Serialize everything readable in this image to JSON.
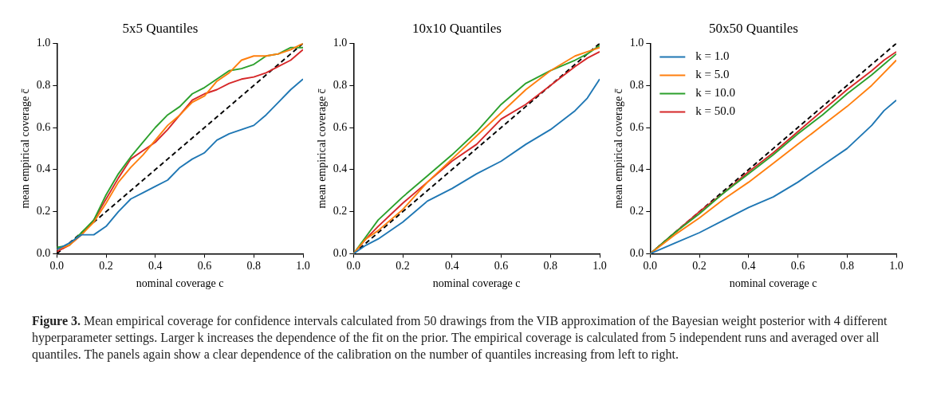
{
  "chart_data": [
    {
      "type": "line",
      "title": "5x5 Quantiles",
      "xlabel": "nominal coverage c",
      "ylabel": "mean empirical coverage c̄",
      "xlim": [
        0,
        1
      ],
      "ylim": [
        0,
        1
      ],
      "xticks": [
        {
          "value": 0,
          "label": "0.0"
        },
        {
          "value": 0.2,
          "label": "0.2"
        },
        {
          "value": 0.4,
          "label": "0.4"
        },
        {
          "value": 0.6,
          "label": "0.6"
        },
        {
          "value": 0.8,
          "label": "0.8"
        },
        {
          "value": 1,
          "label": "1.0"
        }
      ],
      "yticks": [
        {
          "value": 0,
          "label": "0.0"
        },
        {
          "value": 0.2,
          "label": "0.2"
        },
        {
          "value": 0.4,
          "label": "0.4"
        },
        {
          "value": 0.6,
          "label": "0.6"
        },
        {
          "value": 0.8,
          "label": "0.8"
        },
        {
          "value": 1,
          "label": "1.0"
        }
      ],
      "x": [
        0,
        0.05,
        0.1,
        0.15,
        0.2,
        0.25,
        0.3,
        0.35,
        0.4,
        0.45,
        0.5,
        0.55,
        0.6,
        0.65,
        0.7,
        0.75,
        0.8,
        0.85,
        0.9,
        0.95,
        1
      ],
      "series": [
        {
          "color": "#1f77b4",
          "values": [
            0.02,
            0.05,
            0.09,
            0.09,
            0.13,
            0.2,
            0.26,
            0.29,
            0.32,
            0.35,
            0.41,
            0.45,
            0.48,
            0.54,
            0.57,
            0.59,
            0.61,
            0.66,
            0.72,
            0.78,
            0.83
          ]
        },
        {
          "color": "#ff7f0e",
          "values": [
            0.02,
            0.04,
            0.09,
            0.15,
            0.24,
            0.34,
            0.41,
            0.47,
            0.54,
            0.61,
            0.66,
            0.72,
            0.75,
            0.82,
            0.86,
            0.92,
            0.94,
            0.94,
            0.95,
            0.97,
            1.0
          ]
        },
        {
          "color": "#2ca02c",
          "values": [
            0.03,
            0.04,
            0.1,
            0.16,
            0.28,
            0.38,
            0.46,
            0.53,
            0.6,
            0.66,
            0.7,
            0.76,
            0.79,
            0.83,
            0.87,
            0.88,
            0.9,
            0.94,
            0.95,
            0.98,
            0.98
          ]
        },
        {
          "color": "#d62728",
          "values": [
            0.01,
            0.04,
            0.09,
            0.16,
            0.26,
            0.36,
            0.45,
            0.49,
            0.53,
            0.59,
            0.66,
            0.73,
            0.76,
            0.78,
            0.81,
            0.83,
            0.84,
            0.86,
            0.89,
            0.92,
            0.97
          ]
        },
        {
          "color": "#000000",
          "line_style": "dashed",
          "values": [
            0,
            0.05,
            0.1,
            0.15,
            0.2,
            0.25,
            0.3,
            0.35,
            0.4,
            0.45,
            0.5,
            0.55,
            0.6,
            0.65,
            0.7,
            0.75,
            0.8,
            0.85,
            0.9,
            0.95,
            1
          ]
        }
      ],
      "annotations": [
        "Figure 3.",
        "Mean empirical coverage for confidence intervals calculated from 50 drawings from the VIB approximation of the Bayesian weight posterior with 4 different hyperparameter settings. Larger k increases the dependence of the fit on the prior. The empirical coverage is calculated from 5 independent runs and averaged over all quantiles. The panels again show a clear dependence of the calibration on the number of quantiles increasing from left to right."
      ]
    },
    {
      "type": "line",
      "title": "10x10 Quantiles",
      "xlabel": "nominal coverage c",
      "ylabel": "mean empirical coverage c̄",
      "xlim": [
        0,
        1
      ],
      "ylim": [
        0,
        1
      ],
      "xticks": [
        {
          "value": 0,
          "label": "0.0"
        },
        {
          "value": 0.2,
          "label": "0.2"
        },
        {
          "value": 0.4,
          "label": "0.4"
        },
        {
          "value": 0.6,
          "label": "0.6"
        },
        {
          "value": 0.8,
          "label": "0.8"
        },
        {
          "value": 1,
          "label": "1.0"
        }
      ],
      "yticks": [
        {
          "value": 0,
          "label": "0.0"
        },
        {
          "value": 0.2,
          "label": "0.2"
        },
        {
          "value": 0.4,
          "label": "0.4"
        },
        {
          "value": 0.6,
          "label": "0.6"
        },
        {
          "value": 0.8,
          "label": "0.8"
        },
        {
          "value": 1,
          "label": "1.0"
        }
      ],
      "x": [
        0,
        0.05,
        0.1,
        0.2,
        0.3,
        0.4,
        0.5,
        0.6,
        0.7,
        0.8,
        0.9,
        0.95,
        1
      ],
      "series": [
        {
          "color": "#1f77b4",
          "values": [
            0,
            0.04,
            0.07,
            0.15,
            0.25,
            0.31,
            0.38,
            0.44,
            0.52,
            0.59,
            0.68,
            0.74,
            0.83
          ]
        },
        {
          "color": "#ff7f0e",
          "values": [
            0,
            0.07,
            0.11,
            0.21,
            0.34,
            0.45,
            0.56,
            0.67,
            0.78,
            0.87,
            0.94,
            0.96,
            0.98
          ]
        },
        {
          "color": "#2ca02c",
          "values": [
            0,
            0.08,
            0.16,
            0.27,
            0.37,
            0.47,
            0.58,
            0.71,
            0.81,
            0.87,
            0.92,
            0.95,
            0.99
          ]
        },
        {
          "color": "#d62728",
          "values": [
            0,
            0.07,
            0.13,
            0.24,
            0.34,
            0.44,
            0.52,
            0.64,
            0.71,
            0.8,
            0.89,
            0.93,
            0.96
          ]
        },
        {
          "color": "#000000",
          "line_style": "dashed",
          "values": [
            0,
            0.05,
            0.1,
            0.2,
            0.3,
            0.4,
            0.5,
            0.6,
            0.7,
            0.8,
            0.9,
            0.95,
            1
          ]
        }
      ]
    },
    {
      "type": "line",
      "title": "50x50 Quantiles",
      "xlabel": "nominal coverage c",
      "ylabel": "mean empirical coverage c̄",
      "xlim": [
        0,
        1
      ],
      "ylim": [
        0,
        1
      ],
      "legend": "top left",
      "xticks": [
        {
          "value": 0,
          "label": "0.0"
        },
        {
          "value": 0.2,
          "label": "0.2"
        },
        {
          "value": 0.4,
          "label": "0.4"
        },
        {
          "value": 0.6,
          "label": "0.6"
        },
        {
          "value": 0.8,
          "label": "0.8"
        },
        {
          "value": 1,
          "label": "1.0"
        }
      ],
      "yticks": [
        {
          "value": 0,
          "label": "0.0"
        },
        {
          "value": 0.2,
          "label": "0.2"
        },
        {
          "value": 0.4,
          "label": "0.4"
        },
        {
          "value": 0.6,
          "label": "0.6"
        },
        {
          "value": 0.8,
          "label": "0.8"
        },
        {
          "value": 1,
          "label": "1.0"
        }
      ],
      "x": [
        0,
        0.1,
        0.2,
        0.3,
        0.4,
        0.5,
        0.6,
        0.7,
        0.8,
        0.9,
        0.95,
        1
      ],
      "series": [
        {
          "name": "k = 1.0",
          "color": "#1f77b4",
          "values": [
            0,
            0.05,
            0.1,
            0.16,
            0.22,
            0.27,
            0.34,
            0.42,
            0.5,
            0.61,
            0.68,
            0.73
          ]
        },
        {
          "name": "k = 5.0",
          "color": "#ff7f0e",
          "values": [
            0,
            0.09,
            0.17,
            0.26,
            0.34,
            0.43,
            0.52,
            0.61,
            0.7,
            0.8,
            0.86,
            0.92
          ]
        },
        {
          "name": "k = 10.0",
          "color": "#2ca02c",
          "values": [
            0,
            0.1,
            0.19,
            0.29,
            0.38,
            0.47,
            0.57,
            0.66,
            0.76,
            0.85,
            0.9,
            0.95
          ]
        },
        {
          "name": "k = 50.0",
          "color": "#d62728",
          "values": [
            0,
            0.1,
            0.2,
            0.29,
            0.39,
            0.48,
            0.58,
            0.68,
            0.78,
            0.87,
            0.92,
            0.96
          ]
        },
        {
          "color": "#000000",
          "line_style": "dashed",
          "values": [
            0,
            0.1,
            0.2,
            0.3,
            0.4,
            0.5,
            0.6,
            0.7,
            0.8,
            0.9,
            0.95,
            1
          ]
        }
      ]
    }
  ]
}
